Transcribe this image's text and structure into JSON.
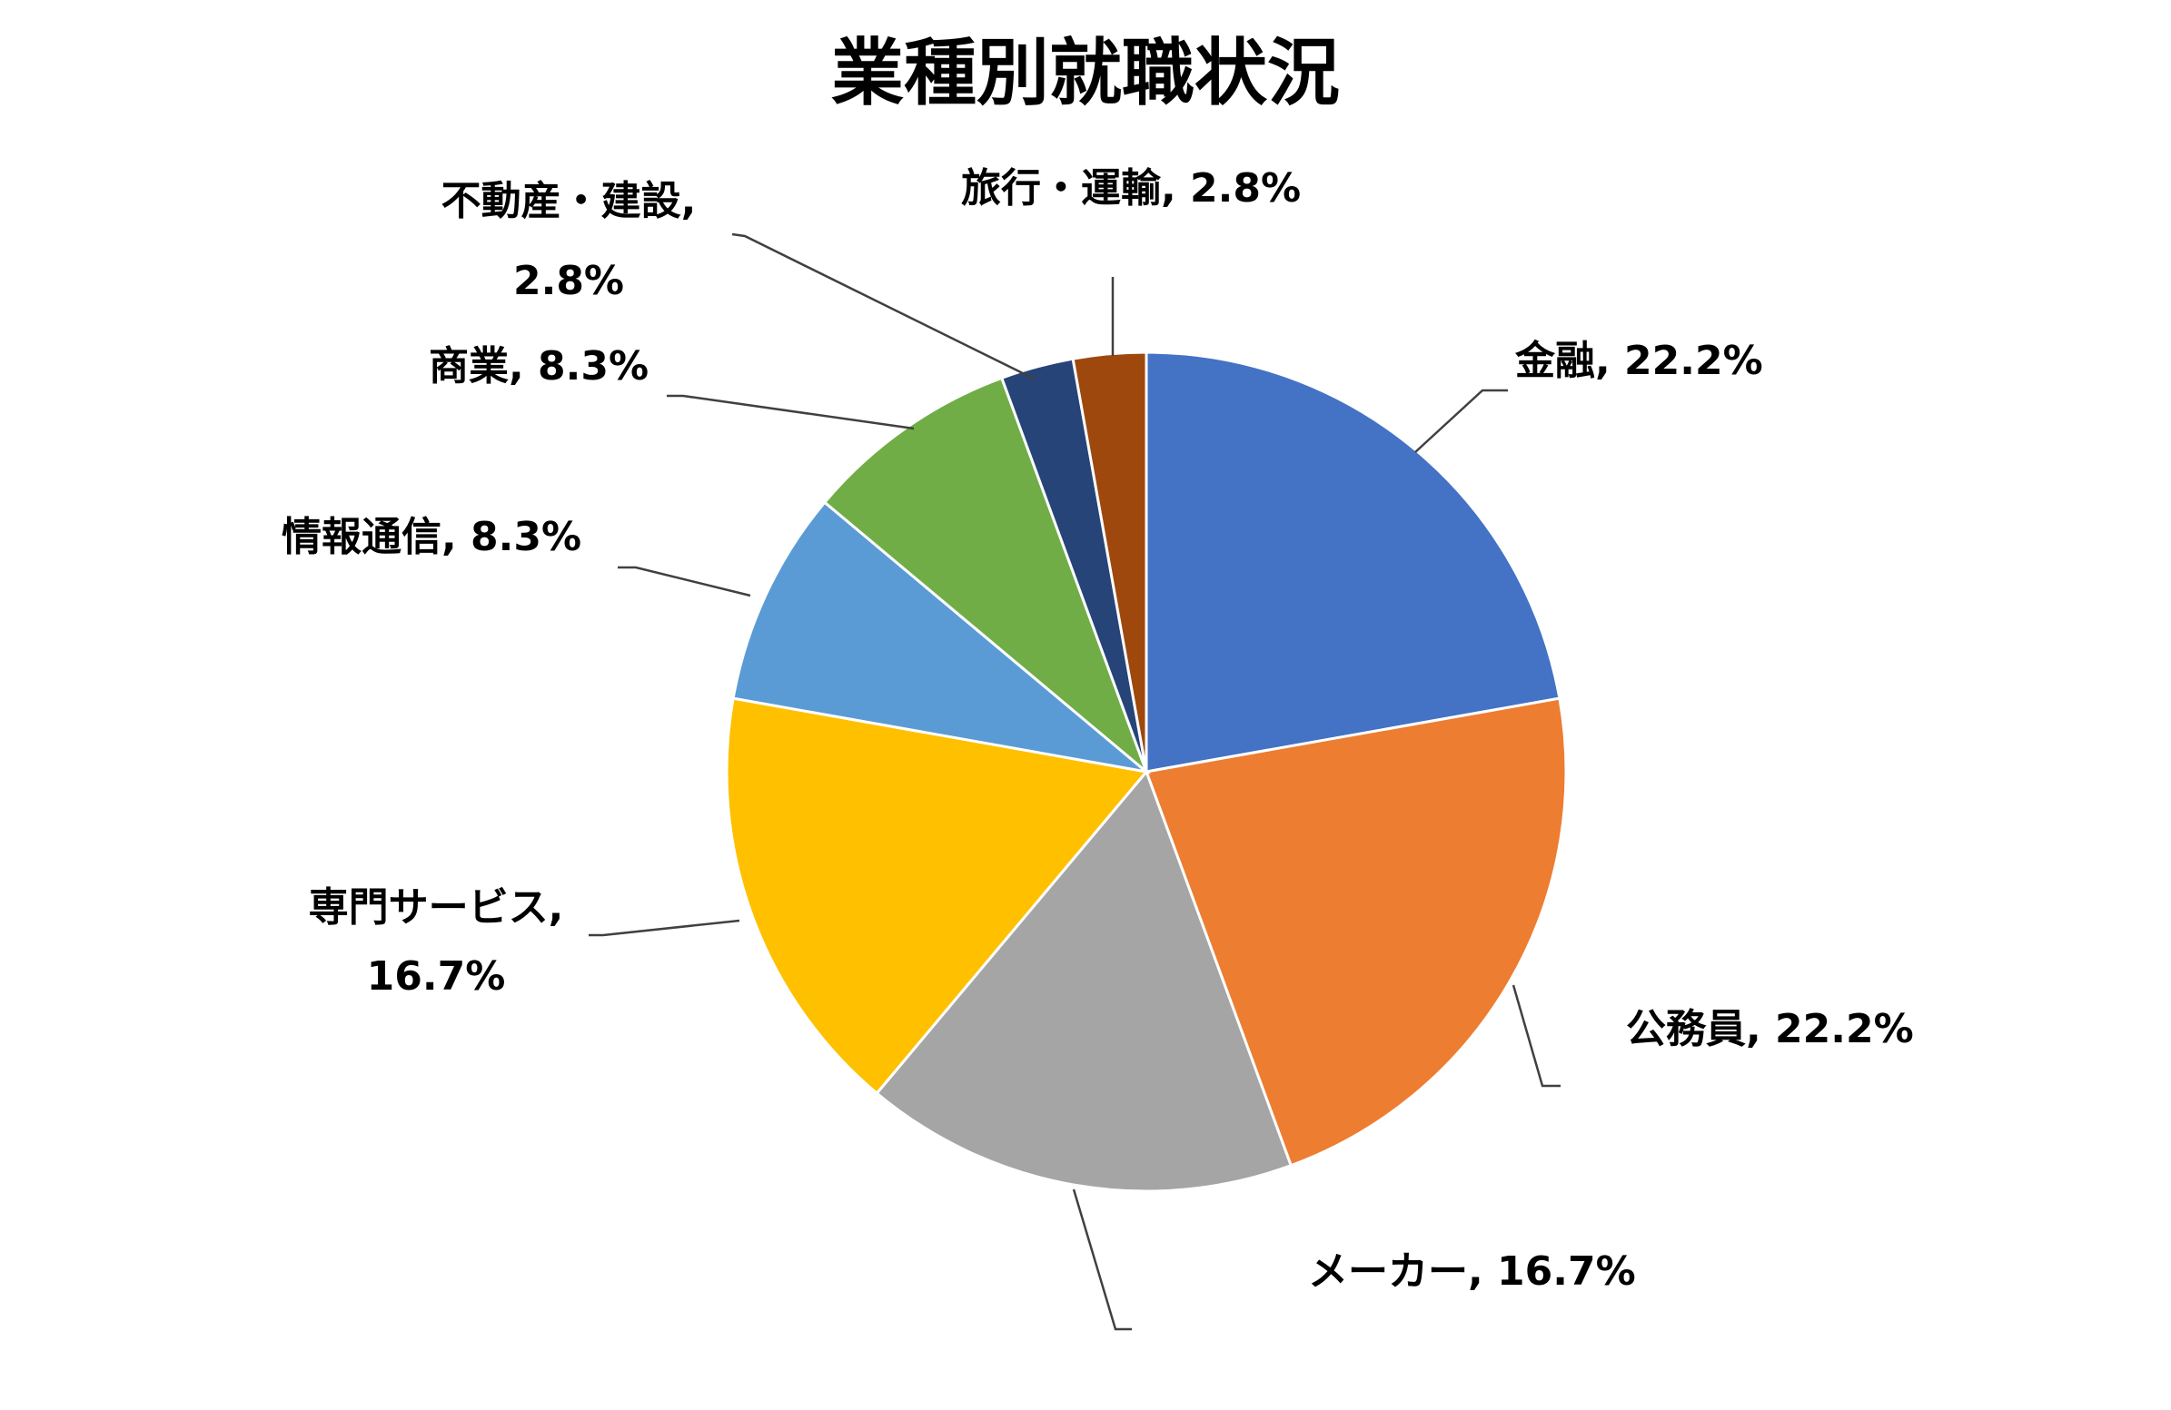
{
  "chart_data": {
    "type": "pie",
    "title": "業種別就職状況",
    "legend": "none",
    "slices": [
      {
        "name": "金融",
        "value": 22.2,
        "label_lines": [
          "金融, 22.2%"
        ],
        "color": "#4472C4"
      },
      {
        "name": "公務員",
        "value": 22.2,
        "label_lines": [
          "公務員, 22.2%"
        ],
        "color": "#ED7D31"
      },
      {
        "name": "メーカー",
        "value": 16.7,
        "label_lines": [
          "メーカー, 16.7%"
        ],
        "color": "#A5A5A5"
      },
      {
        "name": "専門サービス",
        "value": 16.7,
        "label_lines": [
          "専門サービス,",
          "16.7%"
        ],
        "color": "#FFC000"
      },
      {
        "name": "情報通信",
        "value": 8.3,
        "label_lines": [
          "情報通信, 8.3%"
        ],
        "color": "#5B9BD5"
      },
      {
        "name": "商業",
        "value": 8.3,
        "label_lines": [
          "商業, 8.3%"
        ],
        "color": "#70AD47"
      },
      {
        "name": "不動産・建設",
        "value": 2.8,
        "label_lines": [
          "不動産・建設,",
          "2.8%"
        ],
        "color": "#264478"
      },
      {
        "name": "旅行・運輸",
        "value": 2.8,
        "label_lines": [
          "旅行・運輸, 2.8%"
        ],
        "color": "#9E480E"
      }
    ]
  }
}
